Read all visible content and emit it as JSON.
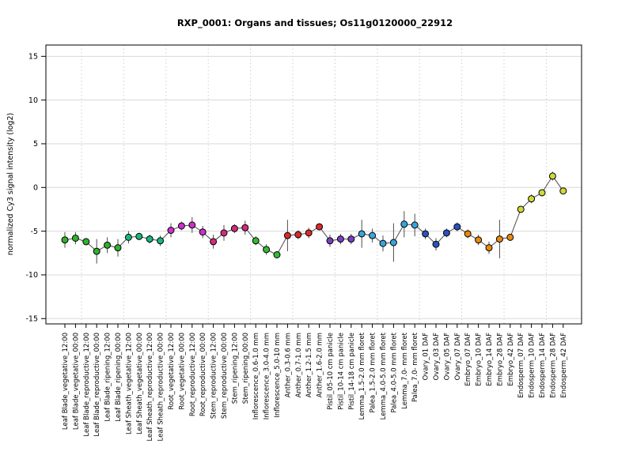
{
  "chart_data": {
    "type": "line",
    "title": "RXP_0001: Organs and tissues; Os11g0120000_22912",
    "xlabel": "",
    "ylabel": "normalized Cy3 signal intensity (log2)",
    "ylim": [
      -16,
      16
    ],
    "yticks": [
      15,
      10,
      5,
      0,
      -5,
      -10,
      -15
    ],
    "grid": {
      "horizontal": "solid light gray at each y tick",
      "vertical": "dotted light gray every 4 categories"
    },
    "legend_position": "none",
    "line_color": "#4d4d4d",
    "point_edge_color": "#000000",
    "error_bar_color": "#4d4d4d",
    "categories": [
      "Leaf Blade_vegetative_12:00",
      "Leaf Blade_vegetative_00:00",
      "Leaf Blade_reproductive_12:00",
      "Leaf Blade_reproductive_00:00",
      "Leaf Blade_ripening_12:00",
      "Leaf Blade_ripening_00:00",
      "Leaf Sheath_vegetative_12:00",
      "Leaf Sheath_vegetative_00:00",
      "Leaf Sheath_reproductive_12:00",
      "Leaf Sheath_reproductive_00:00",
      "Root_vegetative_12:00",
      "Root_vegetative_00:00",
      "Root_reproductive_12:00",
      "Root_reproductive_00:00",
      "Stem_reproductive_12:00",
      "Stem_reproductive_00:00",
      "Stem_ripening_12:00",
      "Stem_ripening_00:00",
      "Inflorescence_0.6-1.0 mm",
      "Inflorescence_3.0-4.0 mm",
      "Inflorescence_5.0-10 mm",
      "Anther_0.3-0.6 mm",
      "Anther_0.7-1.0 mm",
      "Anther_1.2-1.5 mm",
      "Anther_1.6-2.0 mm",
      "Pistil_05-10 cm panicle",
      "Pistil_10-14 cm panicle",
      "Pistil_14-18 cm panicle",
      "Lemma_1.5-2.0 mm floret",
      "Palea_1.5-2.0 mm floret",
      "Lemma_4.0-5.0 mm floret",
      "Palea_4.0-5.0 mm floret",
      "Lemma_7.0- mm floret",
      "Palea_7.0- mm floret",
      "Ovary_01 DAF",
      "Ovary_03 DAF",
      "Ovary_05 DAF",
      "Ovary_07 DAF",
      "Embryo_07 DAF",
      "Embryo_10 DAF",
      "Embryo_14 DAF",
      "Embryo_28 DAF",
      "Embryo_42 DAF",
      "Endosperm_07 DAF",
      "Endosperm_10 DAF",
      "Endosperm_14 DAF",
      "Endosperm_28 DAF",
      "Endosperm_42 DAF"
    ],
    "values": [
      -6.0,
      -5.8,
      -6.2,
      -7.3,
      -6.6,
      -6.9,
      -5.7,
      -5.6,
      -5.9,
      -6.1,
      -4.9,
      -4.4,
      -4.3,
      -5.1,
      -6.2,
      -5.2,
      -4.7,
      -4.6,
      -6.1,
      -7.1,
      -7.7,
      -5.5,
      -5.4,
      -5.2,
      -4.5,
      -6.1,
      -5.9,
      -5.9,
      -5.3,
      -5.5,
      -6.4,
      -6.3,
      -4.2,
      -4.3,
      -5.3,
      -6.5,
      -5.2,
      -4.5,
      -5.3,
      -6.0,
      -6.9,
      -5.9,
      -5.7,
      -2.5,
      -1.3,
      -0.6,
      1.3,
      -0.4
    ],
    "errors": [
      0.9,
      0.7,
      0.3,
      1.4,
      0.9,
      1.0,
      0.7,
      0.4,
      0.5,
      0.6,
      0.8,
      0.5,
      0.9,
      0.7,
      0.8,
      0.9,
      0.5,
      0.8,
      0.5,
      0.6,
      0.4,
      1.8,
      0.5,
      0.6,
      0.4,
      0.7,
      0.6,
      0.6,
      1.6,
      0.8,
      0.9,
      2.2,
      1.5,
      1.3,
      0.6,
      0.7,
      0.5,
      0.5,
      0.5,
      0.6,
      0.7,
      2.2,
      0.4,
      0.4,
      0.5,
      0.3,
      0.5,
      0.3
    ],
    "groups": [
      {
        "name": "Leaf Blade",
        "color": "#2db32d",
        "count": 6
      },
      {
        "name": "Leaf Sheath",
        "color": "#17b87a",
        "count": 4
      },
      {
        "name": "Root",
        "color": "#cc2fcc",
        "count": 4
      },
      {
        "name": "Stem",
        "color": "#d62a7d",
        "count": 4
      },
      {
        "name": "Inflorescence",
        "color": "#33bb33",
        "count": 3
      },
      {
        "name": "Anther",
        "color": "#d92b2b",
        "count": 4
      },
      {
        "name": "Pistil",
        "color": "#7a3fc4",
        "count": 3
      },
      {
        "name": "Lemma/Palea",
        "color": "#3aa4dc",
        "count": 6
      },
      {
        "name": "Ovary",
        "color": "#2a52c0",
        "count": 4
      },
      {
        "name": "Embryo",
        "color": "#e8890c",
        "count": 5
      },
      {
        "name": "Endosperm",
        "color": "#cfd83a",
        "count": 5
      }
    ]
  }
}
